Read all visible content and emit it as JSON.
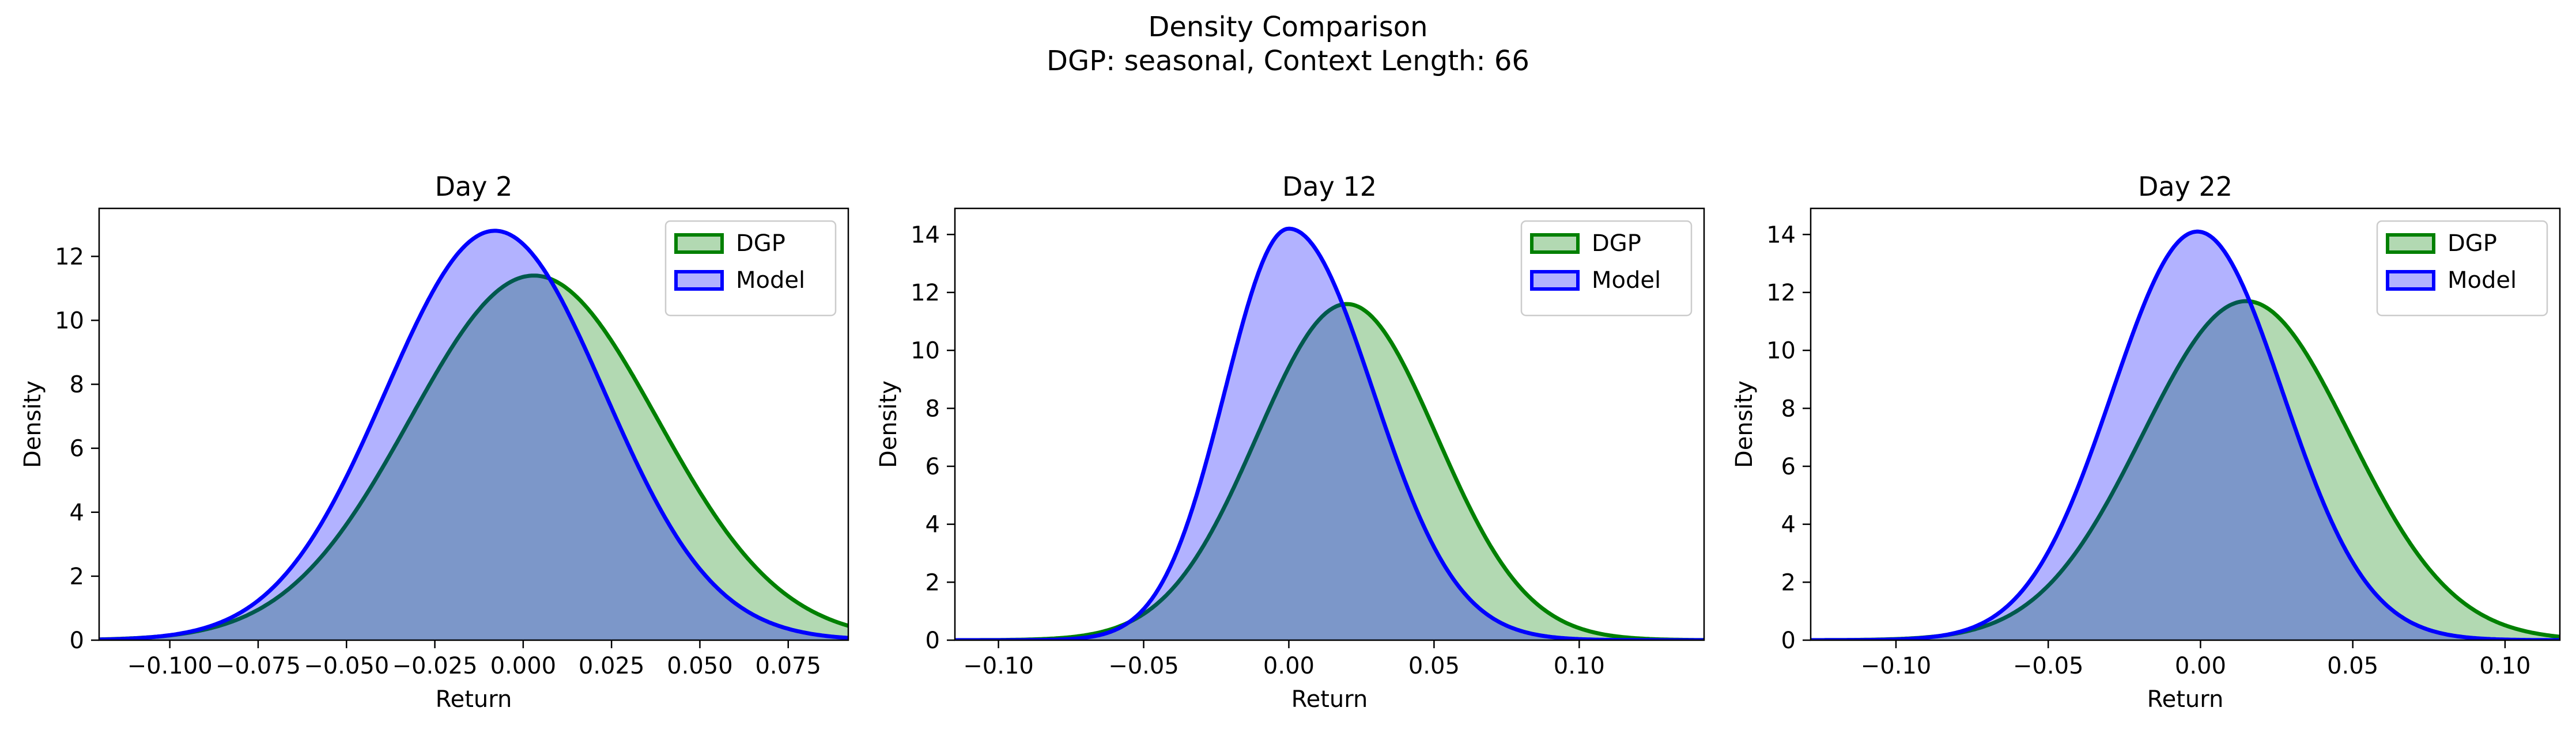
{
  "title": "Density Comparison",
  "subtitle": "DGP: seasonal, Context Length: 66",
  "colors": {
    "dgp_line": "#008000",
    "dgp_fill": "#008000",
    "model_line": "#0000ff",
    "model_fill": "#0000ff",
    "fill_alpha": 0.3
  },
  "chart_data": [
    {
      "type": "area",
      "title": "Day 2",
      "xlabel": "Return",
      "ylabel": "Density",
      "xlim": [
        -0.12,
        0.092
      ],
      "ylim": [
        0,
        13.5
      ],
      "xticks": [
        -0.1,
        -0.075,
        -0.05,
        -0.025,
        0.0,
        0.025,
        0.05,
        0.075
      ],
      "xtick_labels": [
        "−0.100",
        "−0.075",
        "−0.050",
        "−0.025",
        "0.000",
        "0.025",
        "0.050",
        "0.075"
      ],
      "yticks": [
        0,
        2,
        4,
        6,
        8,
        10,
        12
      ],
      "ytick_labels": [
        "0",
        "2",
        "4",
        "6",
        "8",
        "10",
        "12"
      ],
      "legend": "top-right",
      "series": [
        {
          "name": "DGP",
          "peak_x": 0.003,
          "peak_y": 11.4,
          "sd_left": 0.035,
          "sd_right": 0.035
        },
        {
          "name": "Model",
          "peak_x": -0.008,
          "peak_y": 12.8,
          "sd_left": 0.031,
          "sd_right": 0.031
        }
      ]
    },
    {
      "type": "area",
      "title": "Day 12",
      "xlabel": "Return",
      "ylabel": "Density",
      "xlim": [
        -0.115,
        0.143
      ],
      "ylim": [
        0,
        14.9
      ],
      "xticks": [
        -0.1,
        -0.05,
        0.0,
        0.05,
        0.1
      ],
      "xtick_labels": [
        "−0.10",
        "−0.05",
        "0.00",
        "0.05",
        "0.10"
      ],
      "yticks": [
        0,
        2,
        4,
        6,
        8,
        10,
        12,
        14
      ],
      "ytick_labels": [
        "0",
        "2",
        "4",
        "6",
        "8",
        "10",
        "12",
        "14"
      ],
      "legend": "top-right",
      "series": [
        {
          "name": "DGP",
          "peak_x": 0.02,
          "peak_y": 11.6,
          "sd_left": 0.031,
          "sd_right": 0.031
        },
        {
          "name": "Model",
          "peak_x": 0.0,
          "peak_y": 14.2,
          "sd_left": 0.022,
          "sd_right": 0.029
        }
      ]
    },
    {
      "type": "area",
      "title": "Day 22",
      "xlabel": "Return",
      "ylabel": "Density",
      "xlim": [
        -0.128,
        0.118
      ],
      "ylim": [
        0,
        14.9
      ],
      "xticks": [
        -0.1,
        -0.05,
        0.0,
        0.05,
        0.1
      ],
      "xtick_labels": [
        "−0.10",
        "−0.05",
        "0.00",
        "0.05",
        "0.10"
      ],
      "yticks": [
        0,
        2,
        4,
        6,
        8,
        10,
        12,
        14
      ],
      "ytick_labels": [
        "0",
        "2",
        "4",
        "6",
        "8",
        "10",
        "12",
        "14"
      ],
      "legend": "top-right",
      "series": [
        {
          "name": "DGP",
          "peak_x": 0.015,
          "peak_y": 11.7,
          "sd_left": 0.034,
          "sd_right": 0.034
        },
        {
          "name": "Model",
          "peak_x": -0.001,
          "peak_y": 14.1,
          "sd_left": 0.028,
          "sd_right": 0.028
        }
      ]
    }
  ]
}
